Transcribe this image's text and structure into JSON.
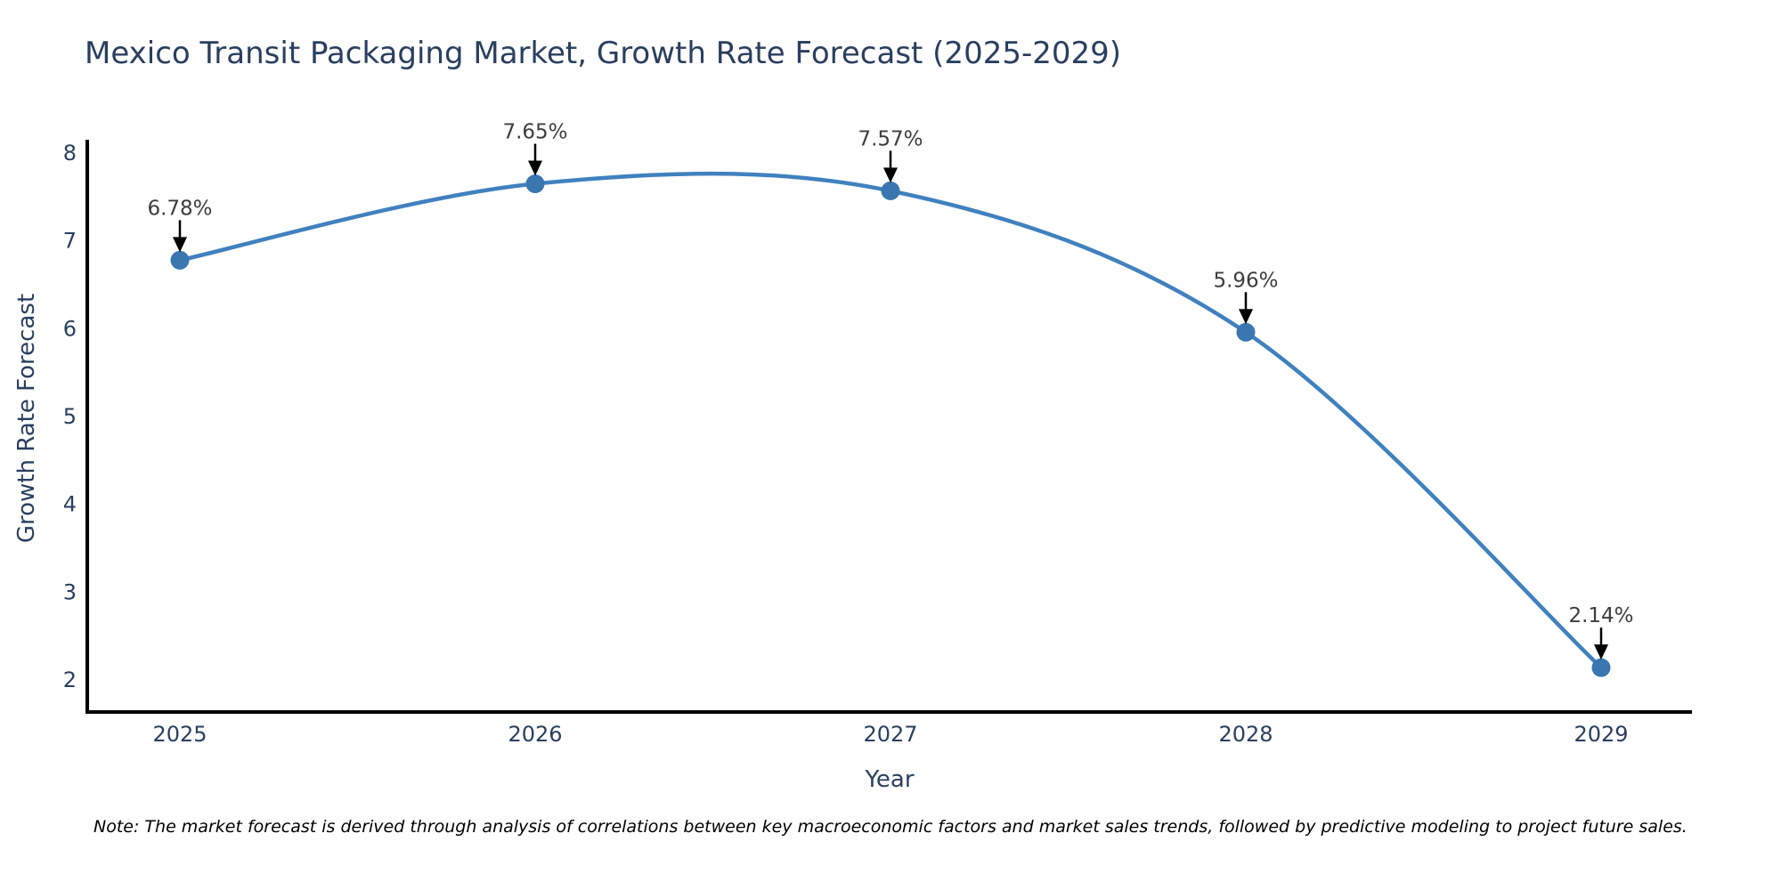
{
  "chart_data": {
    "type": "line",
    "line_shape": "spline",
    "title": "Mexico Transit Packaging Market, Growth Rate Forecast (2025-2029)",
    "xlabel": "Year",
    "ylabel": "Growth Rate Forecast",
    "categories": [
      "2025",
      "2026",
      "2027",
      "2028",
      "2029"
    ],
    "series": [
      {
        "name": "Growth Rate Forecast",
        "values": [
          6.78,
          7.65,
          7.57,
          5.96,
          2.14
        ],
        "point_labels": [
          "6.78%",
          "7.65%",
          "7.57%",
          "5.96%",
          "2.14%"
        ]
      }
    ],
    "yticks": [
      2,
      3,
      4,
      5,
      6,
      7,
      8
    ],
    "ylim": [
      1.64,
      8.14
    ],
    "grid": false,
    "legend_position": "none",
    "annotations_have_arrows": true,
    "colors": {
      "line": "#4081bf",
      "marker": "#3a77b0",
      "axis": "#000000",
      "arrow": "#000000",
      "text": "#2a3f5f",
      "annotation_text": "#3d3d3d",
      "background": "#ffffff"
    },
    "note": "Note: The market forecast is derived through analysis of correlations between key macroeconomic factors and market sales trends, followed by predictive modeling to project future sales."
  }
}
